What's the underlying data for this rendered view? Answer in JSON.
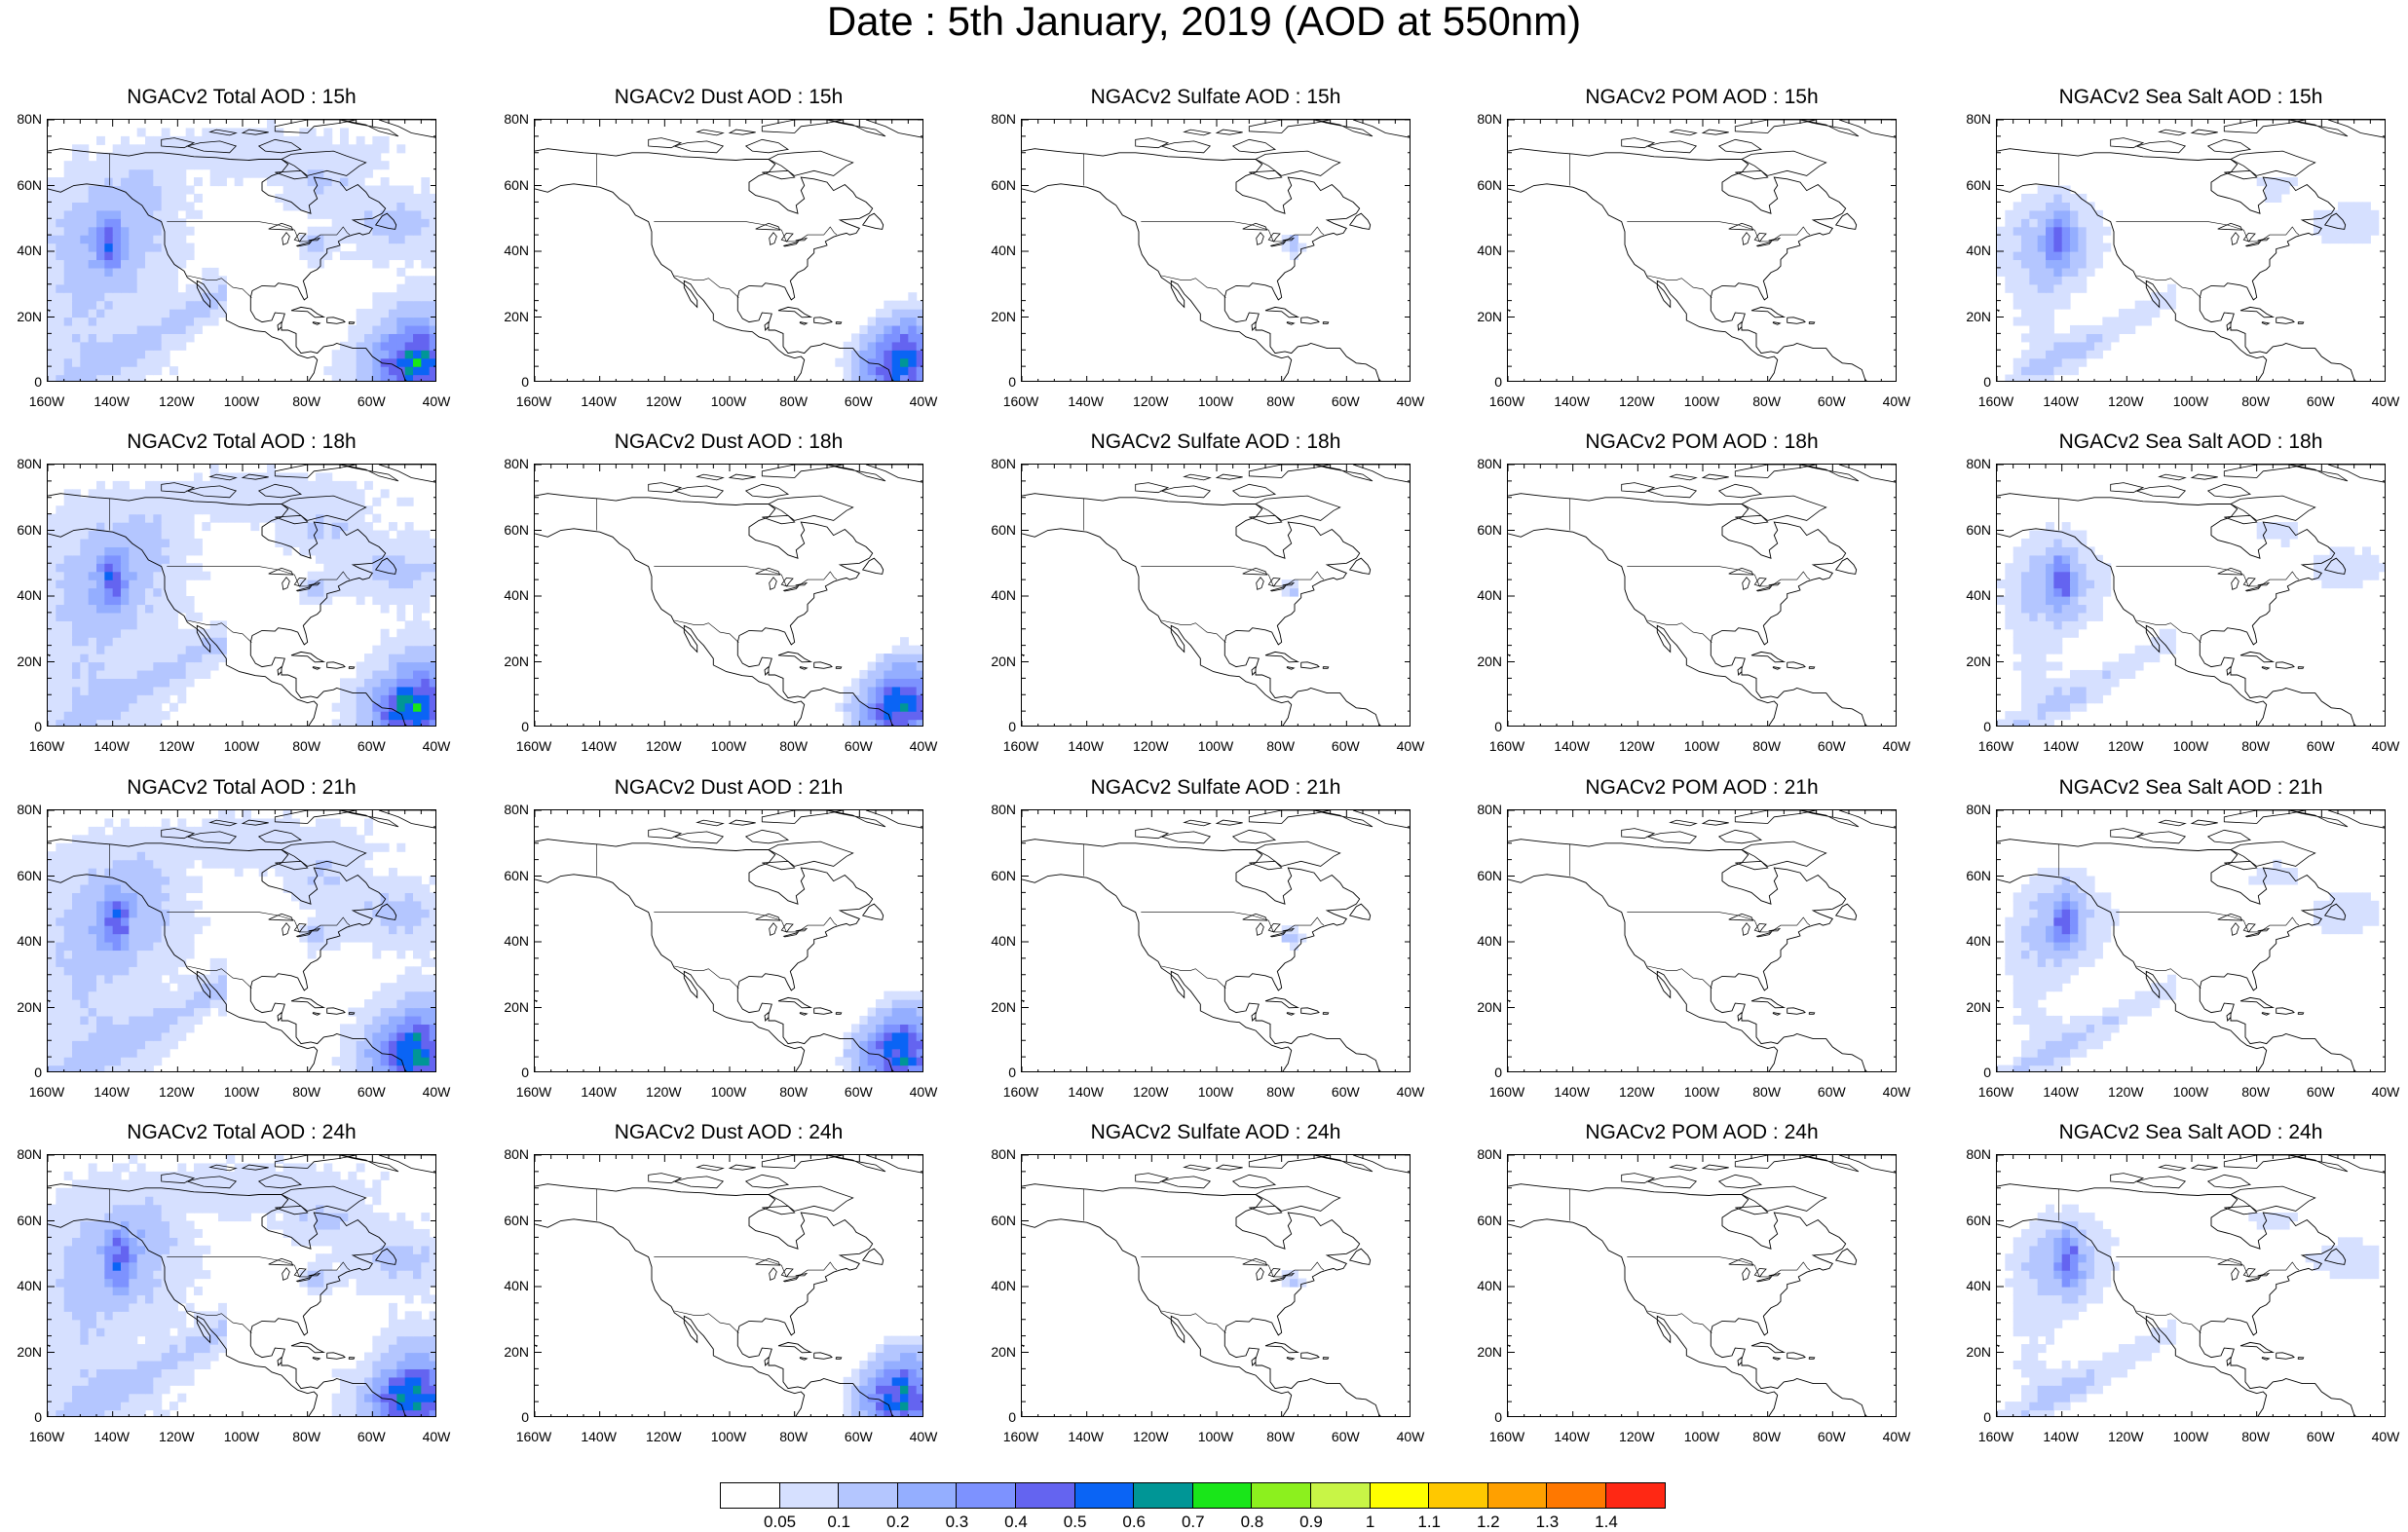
{
  "title": "Date : 5th January, 2019 (AOD at 550nm)",
  "chart_data": {
    "type": "heatmap",
    "title": "Date : 5th January, 2019 (AOD at 550nm)",
    "layout": "4 rows (forecast hours) x 5 columns (aerosol species)",
    "x_ticks": [
      "160W",
      "140W",
      "120W",
      "100W",
      "80W",
      "60W",
      "40W"
    ],
    "y_ticks": [
      "80N",
      "60N",
      "40N",
      "20N",
      "0"
    ],
    "xlim": [
      -160,
      -40
    ],
    "ylim": [
      0,
      80
    ],
    "panels": [
      {
        "title": "NGACv2 Total AOD : 15h",
        "species": "total",
        "hour": 15
      },
      {
        "title": "NGACv2 Dust AOD : 15h",
        "species": "dust",
        "hour": 15
      },
      {
        "title": "NGACv2 Sulfate AOD : 15h",
        "species": "sulfate",
        "hour": 15
      },
      {
        "title": "NGACv2 POM AOD : 15h",
        "species": "pom",
        "hour": 15
      },
      {
        "title": "NGACv2 Sea Salt AOD : 15h",
        "species": "seasalt",
        "hour": 15
      },
      {
        "title": "NGACv2 Total AOD : 18h",
        "species": "total",
        "hour": 18
      },
      {
        "title": "NGACv2 Dust AOD : 18h",
        "species": "dust",
        "hour": 18
      },
      {
        "title": "NGACv2 Sulfate AOD : 18h",
        "species": "sulfate",
        "hour": 18
      },
      {
        "title": "NGACv2 POM AOD : 18h",
        "species": "pom",
        "hour": 18
      },
      {
        "title": "NGACv2 Sea Salt AOD : 18h",
        "species": "seasalt",
        "hour": 18
      },
      {
        "title": "NGACv2 Total AOD : 21h",
        "species": "total",
        "hour": 21
      },
      {
        "title": "NGACv2 Dust AOD : 21h",
        "species": "dust",
        "hour": 21
      },
      {
        "title": "NGACv2 Sulfate AOD : 21h",
        "species": "sulfate",
        "hour": 21
      },
      {
        "title": "NGACv2 POM AOD : 21h",
        "species": "pom",
        "hour": 21
      },
      {
        "title": "NGACv2 Sea Salt AOD : 21h",
        "species": "seasalt",
        "hour": 21
      },
      {
        "title": "NGACv2 Total AOD : 24h",
        "species": "total",
        "hour": 24
      },
      {
        "title": "NGACv2 Dust AOD : 24h",
        "species": "dust",
        "hour": 24
      },
      {
        "title": "NGACv2 Sulfate AOD : 24h",
        "species": "sulfate",
        "hour": 24
      },
      {
        "title": "NGACv2 POM AOD : 24h",
        "species": "pom",
        "hour": 24
      },
      {
        "title": "NGACv2 Sea Salt  AOD : 24h",
        "species": "seasalt",
        "hour": 24
      }
    ],
    "colorbar": {
      "levels": [
        "0.05",
        "0.1",
        "0.2",
        "0.3",
        "0.4",
        "0.5",
        "0.6",
        "0.7",
        "0.8",
        "0.9",
        "1",
        "1.1",
        "1.2",
        "1.3",
        "1.4"
      ],
      "colors": [
        "#ffffff",
        "#d6e0ff",
        "#b4c6ff",
        "#94aeff",
        "#7d92ff",
        "#6464f0",
        "#0a64f5",
        "#009696",
        "#19e619",
        "#8cf01e",
        "#c8f546",
        "#ffff00",
        "#ffc800",
        "#ffa000",
        "#ff7800",
        "#ff2814"
      ]
    }
  }
}
